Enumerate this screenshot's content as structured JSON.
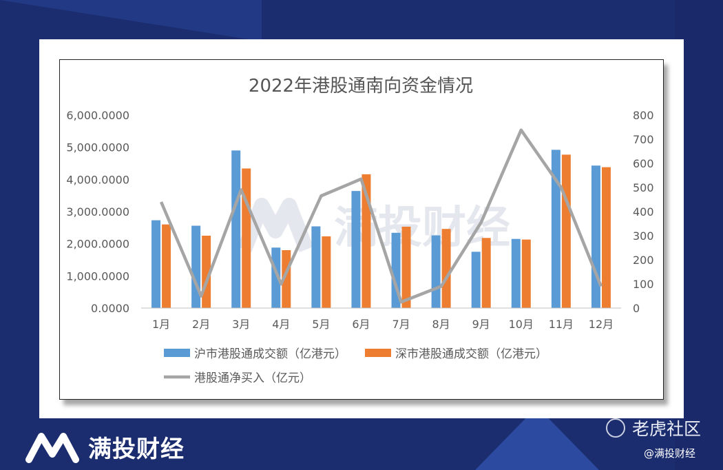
{
  "chart_data": {
    "type": "bar",
    "title": "2022年港股通南向资金情况",
    "categories": [
      "1月",
      "2月",
      "3月",
      "4月",
      "5月",
      "6月",
      "7月",
      "8月",
      "9月",
      "10月",
      "11月",
      "12月"
    ],
    "series": [
      {
        "name": "沪市港股通成交额（亿港元）",
        "type": "bar",
        "axis": "left",
        "color": "#5b9bd5",
        "values": [
          2730,
          2560,
          4900,
          1880,
          2540,
          3640,
          2340,
          2260,
          1750,
          2150,
          4920,
          4430
        ]
      },
      {
        "name": "深市港股通成交额（亿港元）",
        "type": "bar",
        "axis": "left",
        "color": "#ed7d31",
        "values": [
          2600,
          2250,
          4340,
          1800,
          2230,
          4160,
          2530,
          2460,
          2180,
          2130,
          4770,
          4380
        ]
      },
      {
        "name": "港股通净买入（亿元）",
        "type": "line",
        "axis": "right",
        "color": "#a5a5a5",
        "values": [
          440,
          50,
          490,
          100,
          465,
          535,
          25,
          90,
          355,
          738,
          500,
          90
        ]
      }
    ],
    "y_left": {
      "min": 0,
      "max": 6000,
      "ticks": [
        "0.0000",
        "1,000.0000",
        "2,000.0000",
        "3,000.0000",
        "4,000.0000",
        "5,000.0000",
        "6,000.0000"
      ]
    },
    "y_right": {
      "min": 0,
      "max": 800,
      "ticks": [
        "0",
        "100",
        "200",
        "300",
        "400",
        "500",
        "600",
        "700",
        "800"
      ]
    },
    "grid": false,
    "legend_position": "bottom"
  },
  "watermark": "满投财经",
  "footer": {
    "brand": "满投财经",
    "platform": "老虎社区",
    "handle": "@满投财经"
  }
}
